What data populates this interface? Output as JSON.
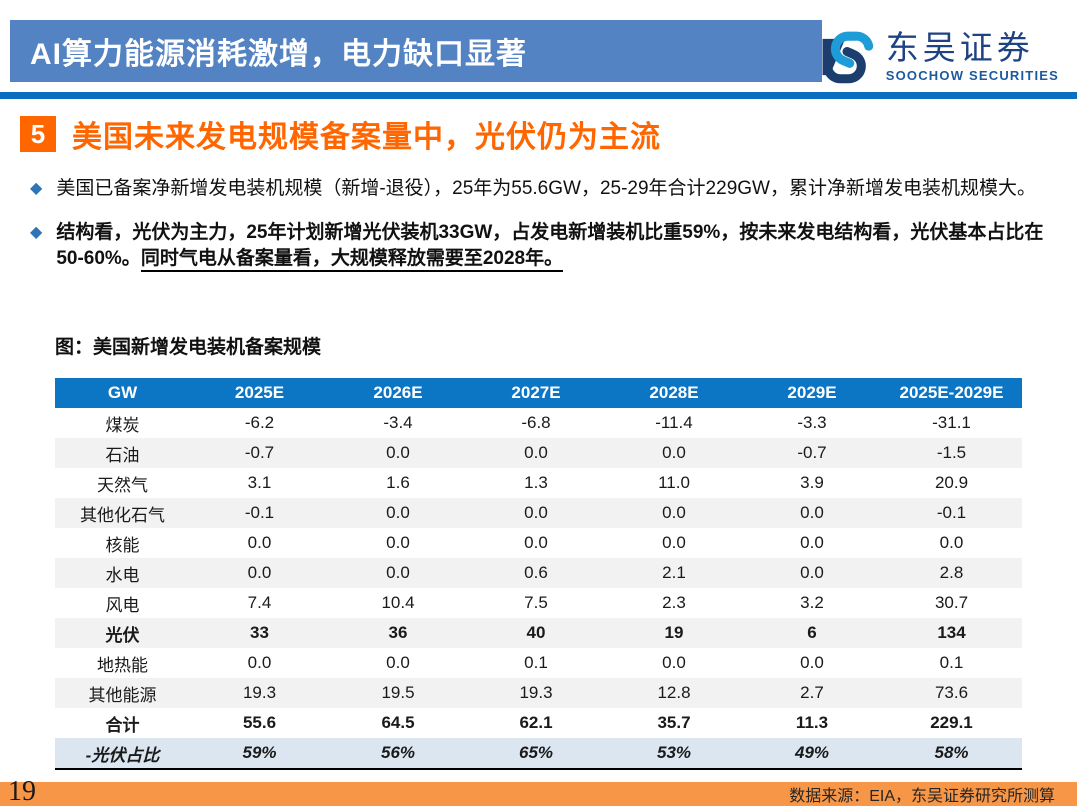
{
  "header": {
    "banner_title": "AI算力能源消耗激增，电力缺口显著",
    "logo": {
      "cn": "东吴证券",
      "en": "SOOCHOW SECURITIES"
    }
  },
  "section": {
    "number": "5",
    "title": "美国未来发电规模备案量中，光伏仍为主流"
  },
  "bullets": [
    {
      "text": "美国已备案净新增发电装机规模（新增-退役），25年为55.6GW，25-29年合计229GW，累计净新增发电装机规模大。"
    },
    {
      "text": "结构看，光伏为主力，25年计划新增光伏装机33GW，占发电新增装机比重59%，按未来发电结构看，光伏基本占比在50-60%。",
      "underline": "同时气电从备案量看，大规模释放需要至2028年。"
    }
  ],
  "table": {
    "caption": "图：美国新增发电装机备案规模",
    "columns": [
      "GW",
      "2025E",
      "2026E",
      "2027E",
      "2028E",
      "2029E",
      "2025E-2029E"
    ],
    "rows": [
      {
        "label": "煤炭",
        "values": [
          "-6.2",
          "-3.4",
          "-6.8",
          "-11.4",
          "-3.3",
          "-31.1"
        ],
        "style": ""
      },
      {
        "label": "石油",
        "values": [
          "-0.7",
          "0.0",
          "0.0",
          "0.0",
          "-0.7",
          "-1.5"
        ],
        "style": ""
      },
      {
        "label": "天然气",
        "values": [
          "3.1",
          "1.6",
          "1.3",
          "11.0",
          "3.9",
          "20.9"
        ],
        "style": ""
      },
      {
        "label": "其他化石气",
        "values": [
          "-0.1",
          "0.0",
          "0.0",
          "0.0",
          "0.0",
          "-0.1"
        ],
        "style": ""
      },
      {
        "label": "核能",
        "values": [
          "0.0",
          "0.0",
          "0.0",
          "0.0",
          "0.0",
          "0.0"
        ],
        "style": ""
      },
      {
        "label": "水电",
        "values": [
          "0.0",
          "0.0",
          "0.6",
          "2.1",
          "0.0",
          "2.8"
        ],
        "style": ""
      },
      {
        "label": "风电",
        "values": [
          "7.4",
          "10.4",
          "7.5",
          "2.3",
          "3.2",
          "30.7"
        ],
        "style": ""
      },
      {
        "label": "光伏",
        "values": [
          "33",
          "36",
          "40",
          "19",
          "6",
          "134"
        ],
        "style": "bold"
      },
      {
        "label": "地热能",
        "values": [
          "0.0",
          "0.0",
          "0.1",
          "0.0",
          "0.0",
          "0.1"
        ],
        "style": ""
      },
      {
        "label": "其他能源",
        "values": [
          "19.3",
          "19.5",
          "19.3",
          "12.8",
          "2.7",
          "73.6"
        ],
        "style": ""
      },
      {
        "label": "合计",
        "values": [
          "55.6",
          "64.5",
          "62.1",
          "35.7",
          "11.3",
          "229.1"
        ],
        "style": "bold"
      },
      {
        "label": "-光伏占比",
        "values": [
          "59%",
          "56%",
          "65%",
          "53%",
          "49%",
          "58%"
        ],
        "style": "pct"
      }
    ]
  },
  "footer": {
    "page_number": "19",
    "source": "数据来源：EIA，东吴证券研究所测算"
  },
  "colors": {
    "banner_blue": "#5483C4",
    "rule_blue": "#0B6DBE",
    "accent_orange": "#FF6600",
    "footer_orange": "#F79646",
    "table_header_blue": "#0D76C4",
    "stripe_gray": "#F2F2F2",
    "pct_row_blue": "#DCE6F1",
    "bullet_diamond_blue": "#2E75B6"
  }
}
